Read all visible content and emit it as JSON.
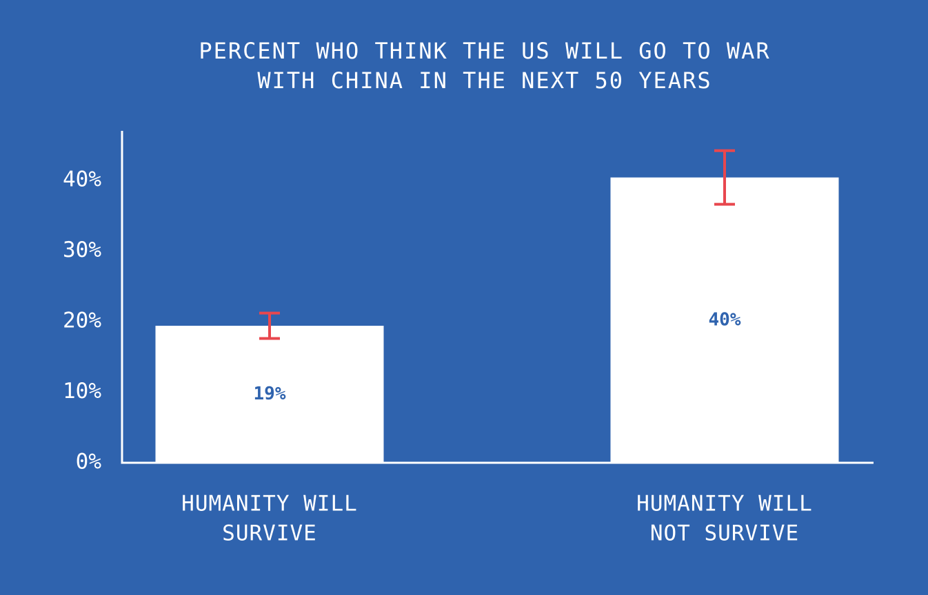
{
  "chart_data": {
    "type": "bar",
    "title": [
      "PERCENT WHO THINK THE US WILL GO TO WAR",
      "WITH CHINA IN THE NEXT 50 YEARS"
    ],
    "categories": [
      [
        "HUMANITY WILL",
        "SURVIVE"
      ],
      [
        "HUMANITY WILL",
        "NOT SURVIVE"
      ]
    ],
    "values": [
      19.4,
      40.4
    ],
    "value_labels": [
      "19%",
      "40%"
    ],
    "errors": [
      1.8,
      3.8
    ],
    "color": "#ffffff",
    "error_color": "#e8474e",
    "ylim": [
      0,
      47
    ],
    "yticks": [
      {
        "value": 0,
        "label": "0%"
      },
      {
        "value": 10,
        "label": "10%"
      },
      {
        "value": 20,
        "label": "20%"
      },
      {
        "value": 30,
        "label": "30%"
      },
      {
        "value": 40,
        "label": "40%"
      }
    ],
    "grid": false
  }
}
